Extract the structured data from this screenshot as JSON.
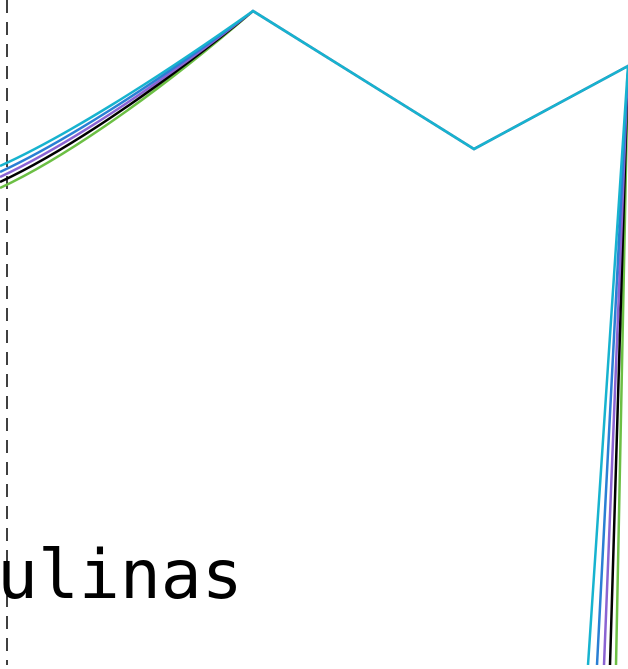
{
  "label_text": "ulinas",
  "colors": {
    "background": "#ffffff",
    "line_green": "#6cbf44",
    "line_black": "#000000",
    "line_purple": "#8a63d2",
    "line_blue": "#2a7fd4",
    "line_cyan": "#17b3cf",
    "dashed_guide": "#000000"
  }
}
